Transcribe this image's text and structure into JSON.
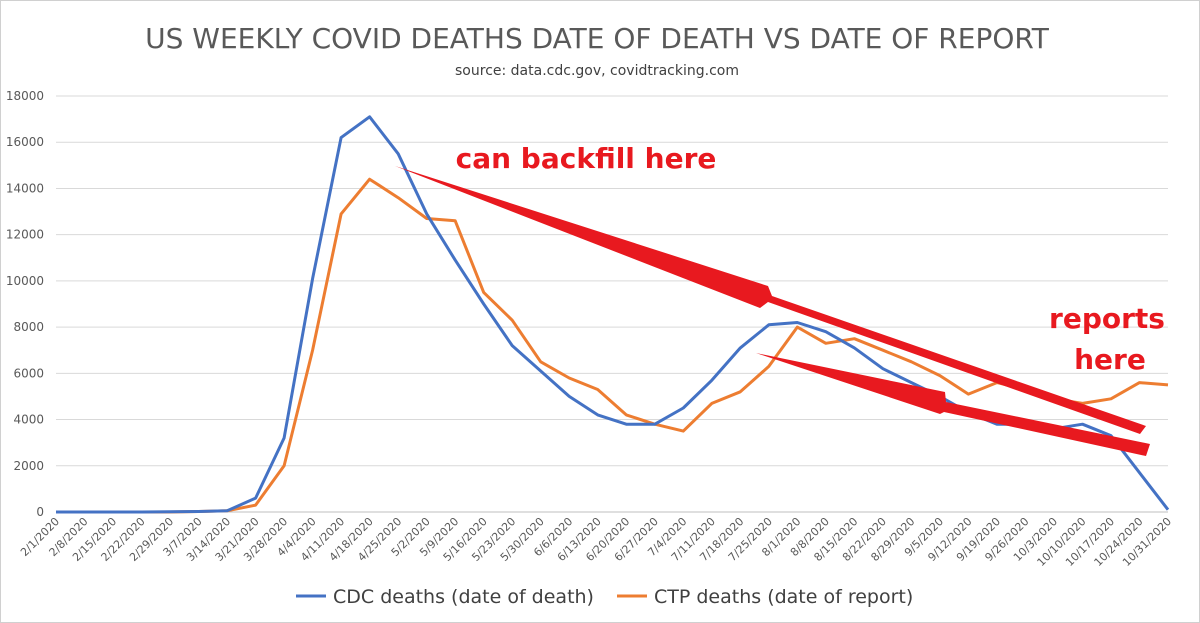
{
  "chart_data": {
    "type": "line",
    "title": "US WEEKLY COVID DEATHS DATE OF DEATH VS DATE OF REPORT",
    "subtitle": "source: data.cdc.gov, covidtracking.com",
    "x": [
      "2/1/2020",
      "2/8/2020",
      "2/15/2020",
      "2/22/2020",
      "2/29/2020",
      "3/7/2020",
      "3/14/2020",
      "3/21/2020",
      "3/28/2020",
      "4/4/2020",
      "4/11/2020",
      "4/18/2020",
      "4/25/2020",
      "5/2/2020",
      "5/9/2020",
      "5/16/2020",
      "5/23/2020",
      "5/30/2020",
      "6/6/2020",
      "6/13/2020",
      "6/20/2020",
      "6/27/2020",
      "7/4/2020",
      "7/11/2020",
      "7/18/2020",
      "7/25/2020",
      "8/1/2020",
      "8/8/2020",
      "8/15/2020",
      "8/22/2020",
      "8/29/2020",
      "9/5/2020",
      "9/12/2020",
      "9/19/2020",
      "9/26/2020",
      "10/3/2020",
      "10/10/2020",
      "10/17/2020",
      "10/24/2020",
      "10/31/2020"
    ],
    "ylim": [
      0,
      18000
    ],
    "yticks": [
      0,
      2000,
      4000,
      6000,
      8000,
      10000,
      12000,
      14000,
      16000,
      18000
    ],
    "grid": true,
    "legend_position": "bottom",
    "series": [
      {
        "name": "CDC deaths (date of death)",
        "color": "#4472c4",
        "values": [
          0,
          0,
          0,
          0,
          10,
          20,
          50,
          600,
          3200,
          10100,
          16200,
          17100,
          15500,
          12900,
          10900,
          9000,
          7200,
          6100,
          5000,
          4200,
          3800,
          3800,
          4500,
          5700,
          7100,
          8100,
          8200,
          7800,
          7100,
          6200,
          5600,
          5000,
          4300,
          3800,
          3800,
          3600,
          3800,
          3300,
          1700,
          100
        ]
      },
      {
        "name": "CTP deaths (date of report)",
        "color": "#ed7d31",
        "values": [
          0,
          0,
          0,
          0,
          0,
          20,
          50,
          300,
          2000,
          7000,
          12900,
          14400,
          13600,
          12700,
          12600,
          9500,
          8300,
          6500,
          5800,
          5300,
          4200,
          3800,
          3500,
          4700,
          5200,
          6300,
          8000,
          7300,
          7500,
          7000,
          6500,
          5900,
          5100,
          5600,
          5300,
          4900,
          4700,
          4900,
          5600,
          5500
        ]
      }
    ],
    "annotations": [
      {
        "text": "can backfill here",
        "color": "#e8191f"
      },
      {
        "text": "reports",
        "color": "#e8191f"
      },
      {
        "text": "here",
        "color": "#e8191f"
      }
    ]
  }
}
